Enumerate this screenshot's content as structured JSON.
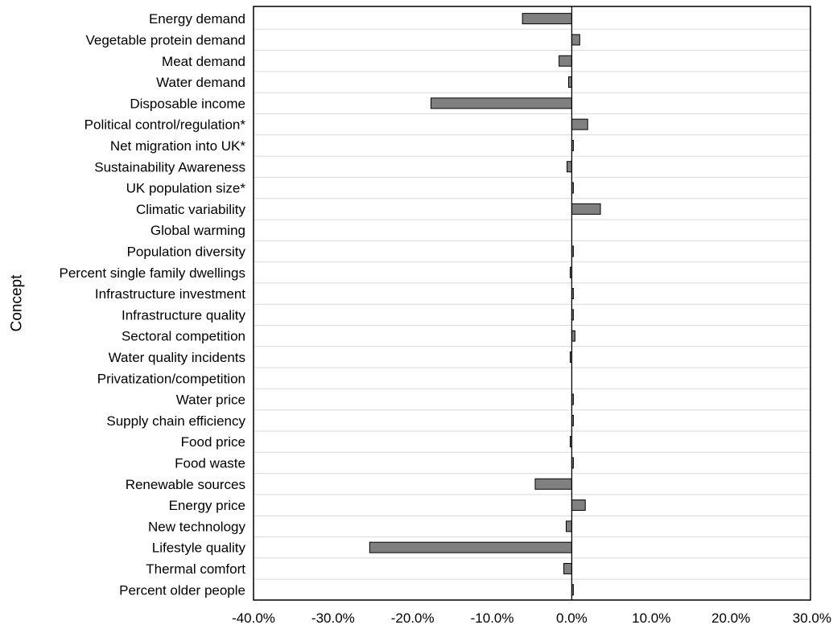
{
  "chart_data": {
    "type": "bar",
    "orientation": "horizontal",
    "title": "",
    "ylabel": "Concept",
    "xlabel": "",
    "xlim": [
      -0.4,
      0.3
    ],
    "xticks": [
      -0.4,
      -0.3,
      -0.2,
      -0.1,
      0.0,
      0.1,
      0.2,
      0.3
    ],
    "xtick_labels": [
      "-40.0%",
      "-30.0%",
      "-20.0%",
      "-10.0%",
      "0.0%",
      "10.0%",
      "20.0%",
      "30.0%"
    ],
    "bar_color": "#808080",
    "grid": "horizontal row separators",
    "categories": [
      "Energy demand",
      "Vegetable protein demand",
      "Meat demand",
      "Water demand",
      "Disposable income",
      "Political control/regulation*",
      "Net migration into UK*",
      "Sustainability Awareness",
      "UK population size*",
      "Climatic variability",
      "Global warming",
      "Population diversity",
      "Percent single family dwellings",
      "Infrastructure investment",
      "Infrastructure quality",
      "Sectoral competition",
      "Water quality incidents",
      "Privatization/competition",
      "Water price",
      "Supply chain efficiency",
      "Food price",
      "Food waste",
      "Renewable sources",
      "Energy price",
      "New technology",
      "Lifestyle quality",
      "Thermal comfort",
      "Percent older people"
    ],
    "values": [
      -0.062,
      0.01,
      -0.016,
      -0.004,
      -0.177,
      0.02,
      0.002,
      -0.006,
      0.002,
      0.036,
      0.0,
      0.002,
      -0.002,
      0.002,
      0.002,
      0.004,
      -0.002,
      0.0,
      0.002,
      0.002,
      -0.002,
      0.002,
      -0.046,
      0.017,
      -0.007,
      -0.254,
      -0.01,
      0.002
    ]
  }
}
